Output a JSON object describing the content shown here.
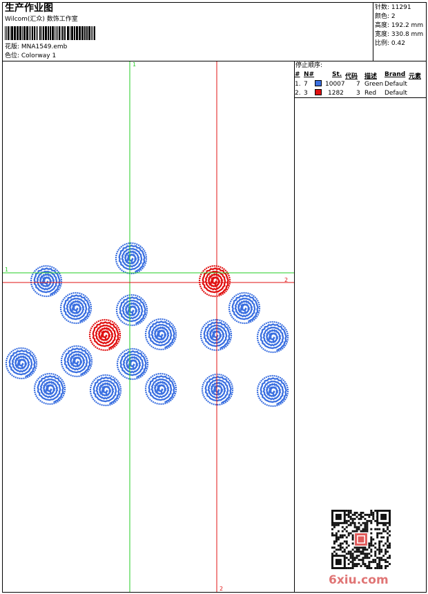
{
  "header": {
    "title": "生产作业图",
    "studio": "Wilcom(汇众) 数饰工作室",
    "design_label": "花版: MNA1549.emb",
    "colorway_label": "色位: Colorway 1"
  },
  "stats": [
    {
      "label": "针数:",
      "value": "11291"
    },
    {
      "label": "颜色:",
      "value": "2"
    },
    {
      "label": "高度:",
      "value": "192.2 mm"
    },
    {
      "label": "宽度:",
      "value": "330.8 mm"
    },
    {
      "label": "比例:",
      "value": "0.42"
    }
  ],
  "stop_sequence": {
    "title": "停止顺序:",
    "columns": [
      "#",
      "N#",
      "St.",
      "代码",
      "描述",
      "Brand",
      "元素"
    ],
    "rows": [
      {
        "idx": "1.",
        "n": "7",
        "color": "#3a6fe0",
        "stitches": "10007",
        "code": "7",
        "desc": "Green",
        "brand": "Default"
      },
      {
        "idx": "2.",
        "n": "3",
        "color": "#e01010",
        "stitches": "1282",
        "code": "3",
        "desc": "Red",
        "brand": "Default"
      }
    ]
  },
  "guides": {
    "green_v_label": "1",
    "green_h_label": "1",
    "red_h_label": "2",
    "red_v_label": "2"
  },
  "colors": {
    "blue_thread": "#3a6fe0",
    "red_thread": "#e01010",
    "green_guide": "#22cc22",
    "red_guide": "#e01010"
  },
  "watermark": "6xiu.com"
}
